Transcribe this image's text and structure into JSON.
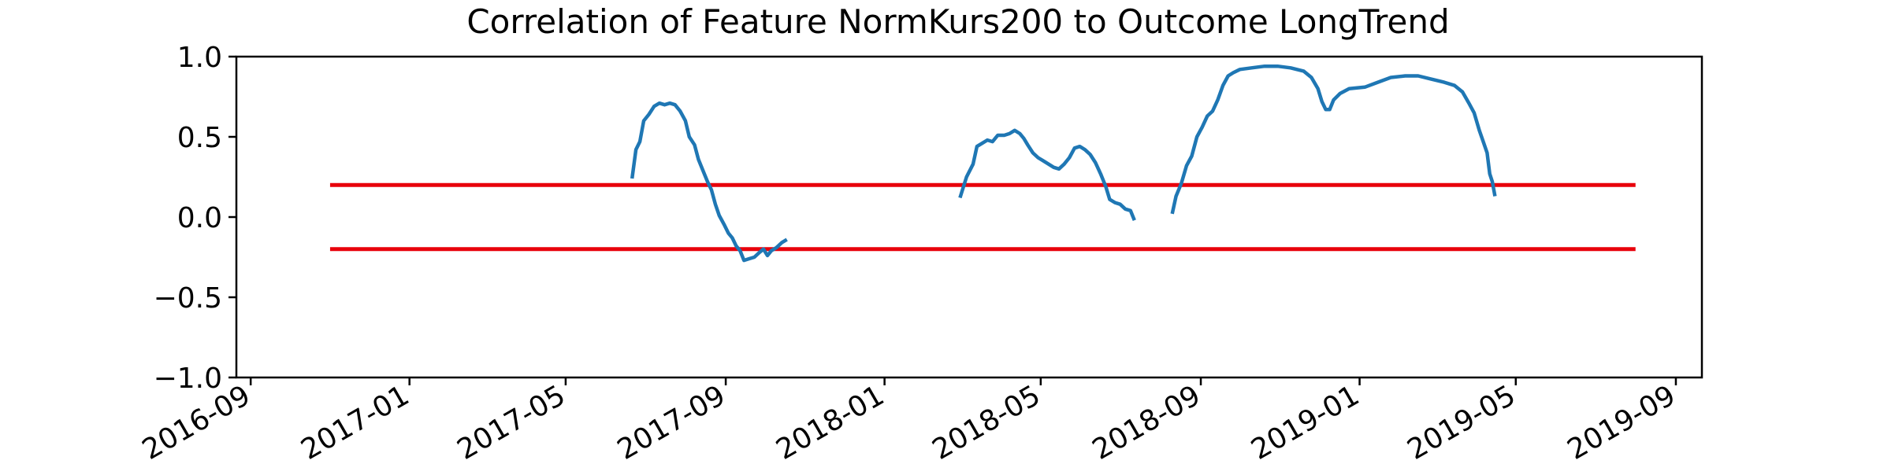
{
  "chart_data": {
    "type": "line",
    "title": "Correlation of Feature NormKurs200 to Outcome LongTrend",
    "xlabel": "",
    "ylabel": "",
    "xlim": [
      "2016-08-21",
      "2019-09-21"
    ],
    "ylim": [
      -1.0,
      1.0
    ],
    "x_ticks": [
      "2016-09",
      "2017-01",
      "2017-05",
      "2017-09",
      "2018-01",
      "2018-05",
      "2018-09",
      "2019-01",
      "2019-05",
      "2019-09"
    ],
    "y_ticks": [
      "1.0",
      "0.5",
      "0.0",
      "−0.5",
      "−1.0"
    ],
    "grid": false,
    "legend": "none",
    "reference_lines": [
      {
        "y": 0.2,
        "x_start": "2016-11-01",
        "x_end": "2019-08-01",
        "color": "#e8000b"
      },
      {
        "y": -0.2,
        "x_start": "2016-11-01",
        "x_end": "2019-08-01",
        "color": "#e8000b"
      }
    ],
    "series": [
      {
        "color": "#1f77b4",
        "segments": [
          [
            [
              "2017-06-21",
              0.24
            ],
            [
              "2017-06-24",
              0.42
            ],
            [
              "2017-06-27",
              0.47
            ],
            [
              "2017-06-30",
              0.6
            ],
            [
              "2017-07-04",
              0.64
            ],
            [
              "2017-07-08",
              0.69
            ],
            [
              "2017-07-12",
              0.71
            ],
            [
              "2017-07-16",
              0.7
            ],
            [
              "2017-07-20",
              0.71
            ],
            [
              "2017-07-24",
              0.7
            ],
            [
              "2017-07-28",
              0.66
            ],
            [
              "2017-08-01",
              0.6
            ],
            [
              "2017-08-04",
              0.5
            ],
            [
              "2017-08-08",
              0.45
            ],
            [
              "2017-08-11",
              0.36
            ],
            [
              "2017-08-15",
              0.28
            ],
            [
              "2017-08-18",
              0.22
            ],
            [
              "2017-08-21",
              0.17
            ],
            [
              "2017-08-24",
              0.08
            ],
            [
              "2017-08-27",
              0.01
            ],
            [
              "2017-08-31",
              -0.05
            ],
            [
              "2017-09-03",
              -0.1
            ],
            [
              "2017-09-06",
              -0.13
            ],
            [
              "2017-09-09",
              -0.18
            ],
            [
              "2017-09-12",
              -0.21
            ],
            [
              "2017-09-15",
              -0.27
            ],
            [
              "2017-09-19",
              -0.26
            ],
            [
              "2017-09-23",
              -0.25
            ],
            [
              "2017-09-27",
              -0.22
            ],
            [
              "2017-09-30",
              -0.2
            ],
            [
              "2017-10-03",
              -0.24
            ],
            [
              "2017-10-06",
              -0.21
            ],
            [
              "2017-10-10",
              -0.19
            ],
            [
              "2017-10-14",
              -0.16
            ],
            [
              "2017-10-18",
              -0.14
            ]
          ],
          [
            [
              "2018-02-28",
              0.12
            ],
            [
              "2018-03-05",
              0.25
            ],
            [
              "2018-03-10",
              0.33
            ],
            [
              "2018-03-13",
              0.44
            ],
            [
              "2018-03-17",
              0.46
            ],
            [
              "2018-03-21",
              0.48
            ],
            [
              "2018-03-25",
              0.47
            ],
            [
              "2018-03-29",
              0.51
            ],
            [
              "2018-04-03",
              0.51
            ],
            [
              "2018-04-07",
              0.52
            ],
            [
              "2018-04-11",
              0.54
            ],
            [
              "2018-04-15",
              0.52
            ],
            [
              "2018-04-18",
              0.49
            ],
            [
              "2018-04-21",
              0.45
            ],
            [
              "2018-04-25",
              0.4
            ],
            [
              "2018-04-29",
              0.37
            ],
            [
              "2018-05-03",
              0.35
            ],
            [
              "2018-05-07",
              0.33
            ],
            [
              "2018-05-11",
              0.31
            ],
            [
              "2018-05-15",
              0.3
            ],
            [
              "2018-05-19",
              0.33
            ],
            [
              "2018-05-23",
              0.37
            ],
            [
              "2018-05-27",
              0.43
            ],
            [
              "2018-05-31",
              0.44
            ],
            [
              "2018-06-04",
              0.42
            ],
            [
              "2018-06-08",
              0.39
            ],
            [
              "2018-06-12",
              0.34
            ],
            [
              "2018-06-16",
              0.27
            ],
            [
              "2018-06-20",
              0.19
            ],
            [
              "2018-06-23",
              0.11
            ],
            [
              "2018-06-27",
              0.09
            ],
            [
              "2018-07-01",
              0.08
            ],
            [
              "2018-07-05",
              0.05
            ],
            [
              "2018-07-09",
              0.04
            ],
            [
              "2018-07-12",
              -0.02
            ]
          ],
          [
            [
              "2018-08-10",
              0.02
            ],
            [
              "2018-08-13",
              0.13
            ],
            [
              "2018-08-17",
              0.21
            ],
            [
              "2018-08-21",
              0.32
            ],
            [
              "2018-08-25",
              0.38
            ],
            [
              "2018-08-29",
              0.5
            ],
            [
              "2018-09-02",
              0.56
            ],
            [
              "2018-09-06",
              0.63
            ],
            [
              "2018-09-10",
              0.66
            ],
            [
              "2018-09-14",
              0.73
            ],
            [
              "2018-09-18",
              0.82
            ],
            [
              "2018-09-22",
              0.88
            ],
            [
              "2018-09-26",
              0.9
            ],
            [
              "2018-10-01",
              0.92
            ],
            [
              "2018-10-10",
              0.93
            ],
            [
              "2018-10-20",
              0.94
            ],
            [
              "2018-10-30",
              0.94
            ],
            [
              "2018-11-09",
              0.93
            ],
            [
              "2018-11-19",
              0.91
            ],
            [
              "2018-11-25",
              0.87
            ],
            [
              "2018-11-30",
              0.8
            ],
            [
              "2018-12-03",
              0.72
            ],
            [
              "2018-12-06",
              0.67
            ],
            [
              "2018-12-09",
              0.67
            ],
            [
              "2018-12-12",
              0.73
            ],
            [
              "2018-12-17",
              0.77
            ],
            [
              "2018-12-24",
              0.8
            ],
            [
              "2019-01-05",
              0.81
            ],
            [
              "2019-01-15",
              0.84
            ],
            [
              "2019-01-25",
              0.87
            ],
            [
              "2019-02-05",
              0.88
            ],
            [
              "2019-02-15",
              0.88
            ],
            [
              "2019-02-25",
              0.86
            ],
            [
              "2019-03-07",
              0.84
            ],
            [
              "2019-03-15",
              0.82
            ],
            [
              "2019-03-21",
              0.78
            ],
            [
              "2019-03-26",
              0.71
            ],
            [
              "2019-03-30",
              0.65
            ],
            [
              "2019-04-03",
              0.54
            ],
            [
              "2019-04-06",
              0.47
            ],
            [
              "2019-04-09",
              0.4
            ],
            [
              "2019-04-11",
              0.27
            ],
            [
              "2019-04-13",
              0.22
            ],
            [
              "2019-04-15",
              0.13
            ]
          ]
        ]
      }
    ]
  }
}
